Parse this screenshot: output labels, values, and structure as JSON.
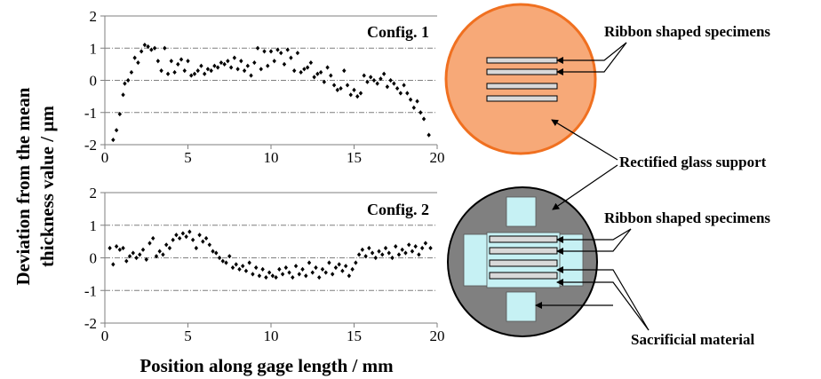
{
  "figure": {
    "ylabel_line1": "Deviation from the mean",
    "ylabel_line2": "thickness value / µm",
    "xlabel": "Position along gage length / mm"
  },
  "chart_data": [
    {
      "type": "scatter",
      "title": "Config. 1",
      "xlim": [
        0,
        20
      ],
      "ylim": [
        -2,
        2
      ],
      "xticks": [
        0,
        5,
        10,
        15,
        20
      ],
      "yticks": [
        -2,
        -1,
        0,
        1,
        2
      ],
      "grid": "horizontal dash-dot at y = -1, 0, 1",
      "marker_color": "#000000",
      "x": [
        0.5,
        0.7,
        0.9,
        1.1,
        1.2,
        1.4,
        1.6,
        1.8,
        2.0,
        2.2,
        2.4,
        2.6,
        2.8,
        3.0,
        3.2,
        3.4,
        3.6,
        3.8,
        4.0,
        4.2,
        4.4,
        4.6,
        4.8,
        5.0,
        5.2,
        5.4,
        5.6,
        5.8,
        6.0,
        6.2,
        6.4,
        6.6,
        6.8,
        7.0,
        7.2,
        7.4,
        7.6,
        7.8,
        8.0,
        8.2,
        8.4,
        8.6,
        8.8,
        9.0,
        9.2,
        9.4,
        9.6,
        9.8,
        10.0,
        10.2,
        10.4,
        10.6,
        10.8,
        11.0,
        11.2,
        11.4,
        11.6,
        11.8,
        12.0,
        12.2,
        12.4,
        12.6,
        12.8,
        13.0,
        13.2,
        13.4,
        13.6,
        13.8,
        14.0,
        14.2,
        14.4,
        14.6,
        14.8,
        15.0,
        15.2,
        15.4,
        15.6,
        15.8,
        16.0,
        16.2,
        16.4,
        16.6,
        16.8,
        17.0,
        17.2,
        17.4,
        17.6,
        17.8,
        18.0,
        18.2,
        18.4,
        18.6,
        18.8,
        19.0,
        19.2,
        19.5
      ],
      "y": [
        -1.85,
        -1.55,
        -1.05,
        -0.45,
        -0.1,
        0.0,
        0.25,
        0.7,
        0.55,
        0.9,
        1.1,
        1.05,
        0.95,
        1.0,
        0.6,
        0.3,
        1.0,
        0.2,
        0.6,
        0.25,
        0.5,
        0.65,
        0.3,
        0.6,
        0.15,
        0.2,
        0.3,
        0.45,
        0.2,
        0.35,
        0.3,
        0.45,
        0.4,
        0.55,
        0.5,
        0.6,
        0.4,
        0.7,
        0.35,
        0.6,
        0.3,
        0.45,
        0.15,
        0.55,
        1.0,
        0.35,
        0.9,
        0.45,
        0.9,
        0.6,
        0.95,
        0.85,
        0.5,
        0.95,
        0.7,
        0.3,
        0.85,
        0.25,
        0.35,
        0.4,
        0.55,
        0.1,
        0.2,
        0.25,
        -0.05,
        0.4,
        0.15,
        -0.15,
        -0.3,
        -0.25,
        0.3,
        -0.15,
        -0.45,
        -0.3,
        -0.5,
        -0.4,
        0.15,
        -0.05,
        0.1,
        0.0,
        -0.1,
        0.05,
        0.2,
        -0.2,
        0.0,
        -0.1,
        -0.25,
        -0.4,
        -0.15,
        -0.4,
        -0.6,
        -0.85,
        -0.65,
        -1.0,
        -1.2,
        -1.7
      ]
    },
    {
      "type": "scatter",
      "title": "Config. 2",
      "xlim": [
        0,
        20
      ],
      "ylim": [
        -2,
        2
      ],
      "xticks": [
        0,
        5,
        10,
        15,
        20
      ],
      "yticks": [
        -2,
        -1,
        0,
        1,
        2
      ],
      "grid": "horizontal dash-dot at y = -1, 0, 1",
      "marker_color": "#000000",
      "x": [
        0.3,
        0.5,
        0.7,
        0.9,
        1.1,
        1.3,
        1.5,
        1.7,
        1.9,
        2.1,
        2.3,
        2.5,
        2.7,
        2.9,
        3.1,
        3.3,
        3.5,
        3.7,
        3.9,
        4.1,
        4.3,
        4.5,
        4.7,
        4.9,
        5.1,
        5.3,
        5.5,
        5.7,
        5.9,
        6.1,
        6.3,
        6.5,
        6.7,
        6.9,
        7.1,
        7.3,
        7.5,
        7.7,
        7.9,
        8.1,
        8.3,
        8.5,
        8.7,
        8.9,
        9.1,
        9.3,
        9.5,
        9.7,
        9.9,
        10.1,
        10.3,
        10.5,
        10.7,
        10.9,
        11.1,
        11.3,
        11.5,
        11.7,
        11.9,
        12.1,
        12.3,
        12.5,
        12.7,
        12.9,
        13.1,
        13.3,
        13.5,
        13.7,
        13.9,
        14.1,
        14.3,
        14.5,
        14.7,
        14.9,
        15.1,
        15.3,
        15.5,
        15.7,
        15.9,
        16.1,
        16.3,
        16.5,
        16.7,
        16.9,
        17.1,
        17.3,
        17.5,
        17.7,
        17.9,
        18.1,
        18.3,
        18.5,
        18.7,
        18.9,
        19.1,
        19.3,
        19.6
      ],
      "y": [
        0.3,
        -0.2,
        0.35,
        0.25,
        0.3,
        -0.1,
        0.05,
        0.15,
        0.0,
        0.1,
        0.25,
        -0.05,
        0.45,
        0.6,
        0.05,
        0.2,
        0.1,
        0.4,
        0.3,
        0.55,
        0.7,
        0.6,
        0.75,
        0.65,
        0.8,
        0.55,
        0.3,
        0.7,
        0.5,
        0.6,
        0.4,
        0.2,
        0.15,
        0.0,
        -0.1,
        -0.15,
        0.05,
        -0.3,
        -0.2,
        -0.35,
        -0.25,
        -0.4,
        -0.15,
        -0.5,
        -0.3,
        -0.55,
        -0.35,
        -0.6,
        -0.45,
        -0.55,
        -0.6,
        -0.35,
        -0.5,
        -0.3,
        -0.45,
        -0.6,
        -0.25,
        -0.5,
        -0.35,
        -0.55,
        -0.15,
        -0.45,
        -0.3,
        -0.6,
        -0.35,
        -0.45,
        -0.15,
        -0.5,
        -0.3,
        -0.2,
        -0.4,
        -0.25,
        -0.55,
        -0.35,
        -0.15,
        0.1,
        0.25,
        0.05,
        0.3,
        0.15,
        0.0,
        0.2,
        0.1,
        0.3,
        0.15,
        0.0,
        0.35,
        0.1,
        0.25,
        0.15,
        0.4,
        0.2,
        0.35,
        0.1,
        0.3,
        0.45,
        0.3
      ]
    }
  ],
  "diagram": {
    "top_label": "Ribbon shaped specimens",
    "middle_label": "Rectified glass support",
    "bottom_top_label": "Ribbon shaped specimens",
    "bottom_label": "Sacrificial material",
    "colors": {
      "glass_fill_top": "#f7a978",
      "glass_stroke_top": "#f07020",
      "glass_fill_bottom": "#808080",
      "sacrificial_fill": "#c6f1f4",
      "ribbon_fill": "#d9d9d9"
    }
  }
}
